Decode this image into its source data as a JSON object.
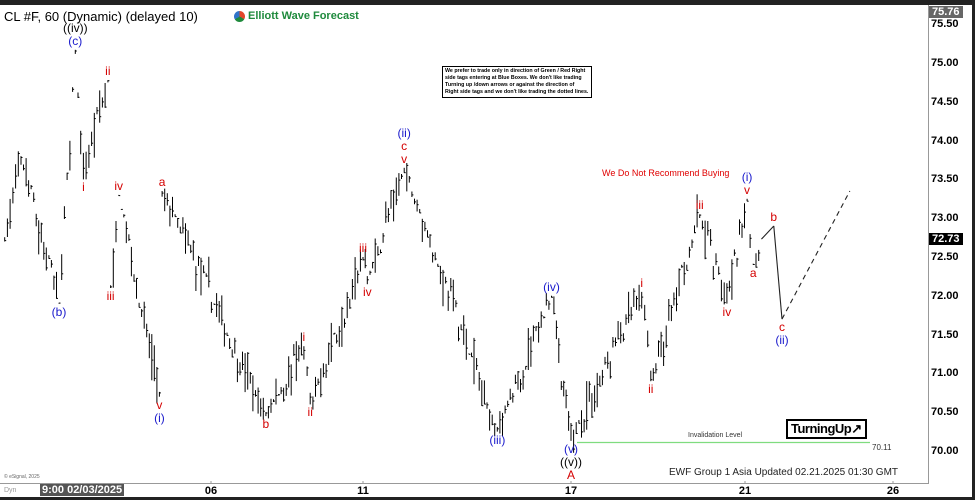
{
  "header": {
    "title": "CL #F, 60 (Dynamic) (delayed 10)",
    "logo_text": "Elliott Wave Forecast"
  },
  "note": "We prefer to trade only in direction of Green / Red Right side tags entering at Blue Boxes. We don't like trading Turning up /down arrows or against the direction of Right side tags and we don't like trading the dotted lines.",
  "warning": "We Do Not Recommend Buying",
  "turning_badge": "TurningUp↗",
  "invalidation": {
    "label": "Invalidation Level",
    "value": "70.11",
    "price": 70.11,
    "color": "#7fdc7f"
  },
  "footer": {
    "updated": "EWF Group 1 Asia Updated 02.21.2025 01:30 GMT",
    "copyright": "© eSignal, 2025",
    "dyn": "Dyn"
  },
  "colors": {
    "red": "#d40000",
    "blue": "#1a1acc",
    "black": "#000000",
    "bars": "#000000"
  },
  "chart_data": {
    "type": "ohlc",
    "start_time_label": "9:00 02/03/2025",
    "x_ticks": [
      "06",
      "11",
      "17",
      "21",
      "26"
    ],
    "y_ticks": [
      "75.50",
      "75.00",
      "74.50",
      "74.00",
      "73.50",
      "73.00",
      "72.50",
      "72.00",
      "71.50",
      "71.00",
      "70.50",
      "70.00"
    ],
    "ylim": [
      69.6,
      75.8
    ],
    "high_label": "75.76",
    "last_price": "72.73",
    "pivots": [
      {
        "t": "01/31 20:00",
        "p": 72.7
      },
      {
        "t": "02/03 02:00",
        "p": 73.8
      },
      {
        "t": "02/03 16:00",
        "p": 71.9
      },
      {
        "t": "02/03 22:00",
        "p": 75.17
      },
      {
        "t": "02/04 01:00",
        "p": 73.5
      },
      {
        "t": "02/04 10:00",
        "p": 74.78
      },
      {
        "t": "02/04 11:00",
        "p": 72.1
      },
      {
        "t": "02/04 14:00",
        "p": 73.3
      },
      {
        "t": "02/05 05:00",
        "p": 70.7
      },
      {
        "t": "02/05 06:00",
        "p": 73.35
      },
      {
        "t": "02/07 02:00",
        "p": 70.45
      },
      {
        "t": "02/07 20:00",
        "p": 71.35
      },
      {
        "t": "02/07 23:00",
        "p": 70.6
      },
      {
        "t": "02/11 00:00",
        "p": 72.5
      },
      {
        "t": "02/11 02:00",
        "p": 72.15
      },
      {
        "t": "02/11 19:00",
        "p": 73.65
      },
      {
        "t": "02/13 14:00",
        "p": 70.25
      },
      {
        "t": "02/14 15:00",
        "p": 72.0
      },
      {
        "t": "02/17 00:00",
        "p": 70.13
      },
      {
        "t": "02/18 15:00",
        "p": 72.05
      },
      {
        "t": "02/18 20:00",
        "p": 70.9
      },
      {
        "t": "02/19 23:00",
        "p": 73.05
      },
      {
        "t": "02/20 14:00",
        "p": 71.9
      },
      {
        "t": "02/21 01:00",
        "p": 73.25
      },
      {
        "t": "02/21 04:00",
        "p": 72.4
      },
      {
        "t": "02/21 08:00",
        "p": 72.73
      }
    ],
    "projection": [
      {
        "t": "02/21 08:00",
        "p": 72.73
      },
      {
        "t": "02/21 14:00",
        "p": 72.9
      },
      {
        "t": "02/21 18:00",
        "p": 71.7
      },
      {
        "t": "02/25 03:00",
        "p": 73.35,
        "dashed": true
      }
    ],
    "wave_labels": [
      {
        "pivot": 2,
        "pos": "below",
        "lines": [
          {
            "t": "(b)",
            "c": "blue"
          }
        ]
      },
      {
        "pivot": 3,
        "pos": "above",
        "lines": [
          {
            "t": "((iv))",
            "c": "black"
          },
          {
            "t": "(c)",
            "c": "blue"
          }
        ]
      },
      {
        "pivot": 4,
        "pos": "below",
        "lines": [
          {
            "t": "i",
            "c": "red"
          }
        ]
      },
      {
        "pivot": 5,
        "pos": "above",
        "lines": [
          {
            "t": "ii",
            "c": "red"
          }
        ]
      },
      {
        "pivot": 6,
        "pos": "below",
        "lines": [
          {
            "t": "iii",
            "c": "red"
          }
        ]
      },
      {
        "pivot": 7,
        "pos": "above",
        "lines": [
          {
            "t": "iv",
            "c": "red"
          }
        ]
      },
      {
        "pivot": 8,
        "pos": "below",
        "lines": [
          {
            "t": "v",
            "c": "red"
          },
          {
            "t": "(i)",
            "c": "blue"
          }
        ]
      },
      {
        "pivot": 9,
        "pos": "above",
        "lines": [
          {
            "t": "a",
            "c": "red"
          }
        ]
      },
      {
        "pivot": 10,
        "pos": "below",
        "lines": [
          {
            "t": "b",
            "c": "red"
          }
        ]
      },
      {
        "pivot": 11,
        "pos": "above",
        "lines": [
          {
            "t": "i",
            "c": "red"
          }
        ]
      },
      {
        "pivot": 12,
        "pos": "below",
        "lines": [
          {
            "t": "ii",
            "c": "red"
          }
        ]
      },
      {
        "pivot": 13,
        "pos": "above",
        "lines": [
          {
            "t": "iii",
            "c": "red"
          }
        ]
      },
      {
        "pivot": 14,
        "pos": "below",
        "lines": [
          {
            "t": "iv",
            "c": "red"
          }
        ]
      },
      {
        "pivot": 15,
        "pos": "above",
        "lines": [
          {
            "t": "(ii)",
            "c": "blue"
          },
          {
            "t": "c",
            "c": "red"
          },
          {
            "t": "v",
            "c": "red"
          }
        ]
      },
      {
        "pivot": 16,
        "pos": "below",
        "lines": [
          {
            "t": "(iii)",
            "c": "blue"
          }
        ]
      },
      {
        "pivot": 17,
        "pos": "above",
        "lines": [
          {
            "t": "(iv)",
            "c": "blue"
          }
        ]
      },
      {
        "pivot": 18,
        "pos": "below",
        "lines": [
          {
            "t": "(v)",
            "c": "blue"
          },
          {
            "t": "((v))",
            "c": "black"
          },
          {
            "t": "A",
            "c": "red"
          }
        ]
      },
      {
        "pivot": 19,
        "pos": "above",
        "lines": [
          {
            "t": "i",
            "c": "red"
          }
        ]
      },
      {
        "pivot": 20,
        "pos": "below",
        "lines": [
          {
            "t": "ii",
            "c": "red"
          }
        ]
      },
      {
        "pivot": 21,
        "pos": "above",
        "lines": [
          {
            "t": "iii",
            "c": "red"
          }
        ]
      },
      {
        "pivot": 22,
        "pos": "below",
        "lines": [
          {
            "t": "iv",
            "c": "red"
          }
        ]
      },
      {
        "pivot": 23,
        "pos": "above",
        "lines": [
          {
            "t": "(i)",
            "c": "blue"
          },
          {
            "t": "v",
            "c": "red"
          }
        ]
      },
      {
        "pivot": 24,
        "pos": "below",
        "lines": [
          {
            "t": "a",
            "c": "red"
          }
        ]
      },
      {
        "proj": 1,
        "pos": "above",
        "lines": [
          {
            "t": "b",
            "c": "red"
          }
        ]
      },
      {
        "proj": 2,
        "pos": "below",
        "lines": [
          {
            "t": "c",
            "c": "red"
          },
          {
            "t": "(ii)",
            "c": "blue"
          }
        ]
      }
    ]
  }
}
